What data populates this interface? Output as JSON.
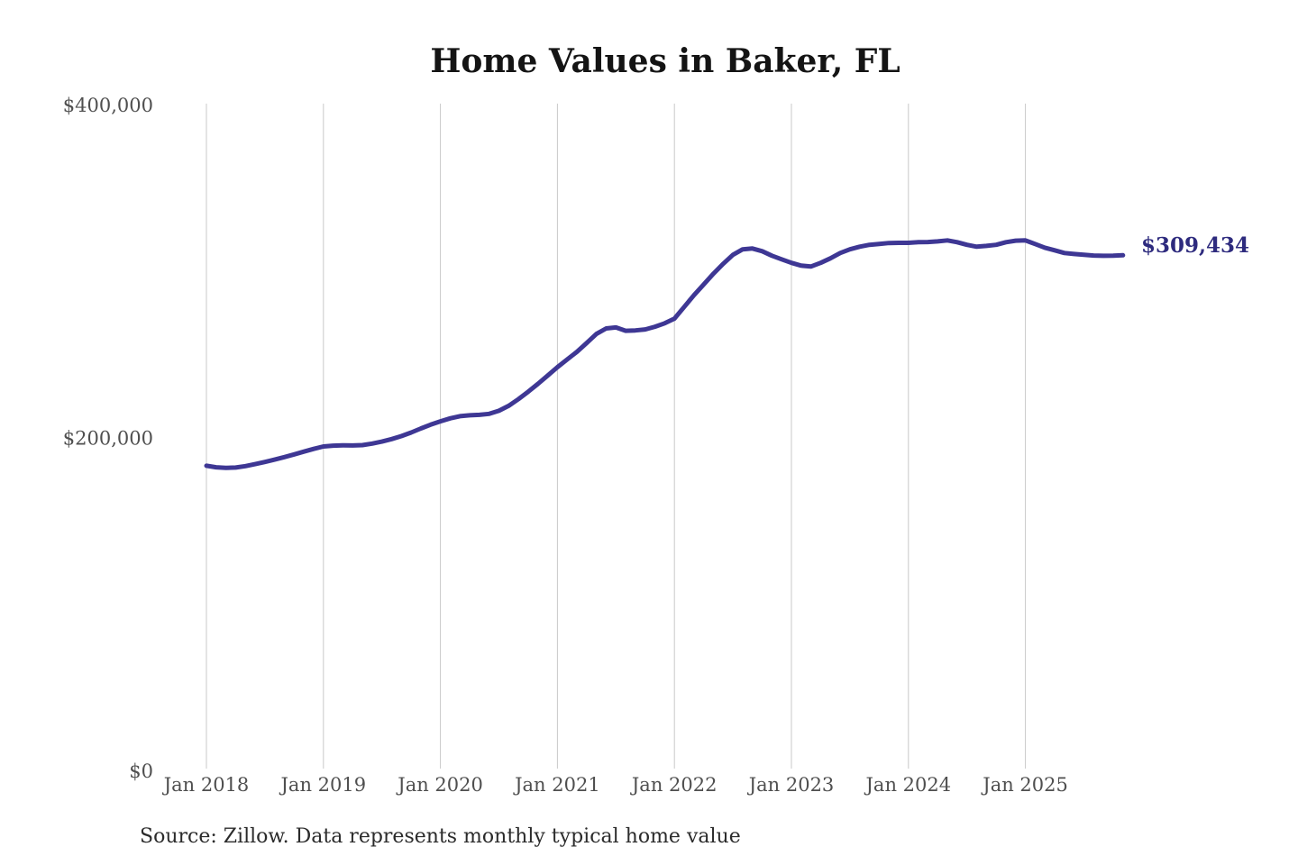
{
  "chart_data": {
    "type": "line",
    "title": "Home Values in Baker, FL",
    "source_note": "Source: Zillow. Data represents monthly typical home value",
    "legend_position": "none",
    "grid": {
      "vertical": true,
      "horizontal": false,
      "color": "#c9c9c9"
    },
    "x_axis": {
      "unit": "month",
      "start": "Jan 2018",
      "end": "Nov 2025",
      "ticks": [
        {
          "label": "Jan 2018",
          "month_index": 0
        },
        {
          "label": "Jan 2019",
          "month_index": 12
        },
        {
          "label": "Jan 2020",
          "month_index": 24
        },
        {
          "label": "Jan 2021",
          "month_index": 36
        },
        {
          "label": "Jan 2022",
          "month_index": 48
        },
        {
          "label": "Jan 2023",
          "month_index": 60
        },
        {
          "label": "Jan 2024",
          "month_index": 72
        },
        {
          "label": "Jan 2025",
          "month_index": 84
        }
      ],
      "tick_label_color": "#4f4f4f"
    },
    "y_axis": {
      "min": 0,
      "max": 400000,
      "ticks": [
        {
          "label": "$0",
          "value": 0
        },
        {
          "label": "$200,000",
          "value": 200000
        },
        {
          "label": "$400,000",
          "value": 400000
        }
      ],
      "tick_label_color": "#4f4f4f"
    },
    "series": [
      {
        "name": "Monthly typical home value",
        "color": "#3e3794",
        "start_month": "2018-01",
        "values_usd": [
          183000,
          182100,
          181700,
          181900,
          182800,
          184000,
          185300,
          186700,
          188200,
          189800,
          191500,
          193100,
          194600,
          195100,
          195300,
          195200,
          195400,
          196300,
          197500,
          199000,
          200800,
          203000,
          205400,
          207700,
          209700,
          211500,
          212800,
          213300,
          213600,
          214200,
          216000,
          219000,
          223000,
          227500,
          232200,
          237200,
          242200,
          246900,
          251400,
          256800,
          262200,
          265500,
          266100,
          264100,
          264300,
          264900,
          266500,
          268600,
          271400,
          278400,
          285400,
          291900,
          298400,
          304300,
          309700,
          313000,
          313500,
          311900,
          309200,
          307000,
          304900,
          303200,
          302700,
          304900,
          307600,
          310800,
          313000,
          314600,
          315700,
          316200,
          316800,
          316900,
          316900,
          317300,
          317400,
          317800,
          318400,
          317300,
          315700,
          314600,
          315100,
          315700,
          317300,
          318200,
          318400,
          316200,
          314000,
          312400,
          310800,
          310200,
          309700,
          309300,
          309100,
          309200,
          309434
        ]
      }
    ],
    "annotation": {
      "label": "$309,434",
      "value": 309434,
      "color": "#2e2b7e"
    },
    "title_color": "#141414"
  }
}
